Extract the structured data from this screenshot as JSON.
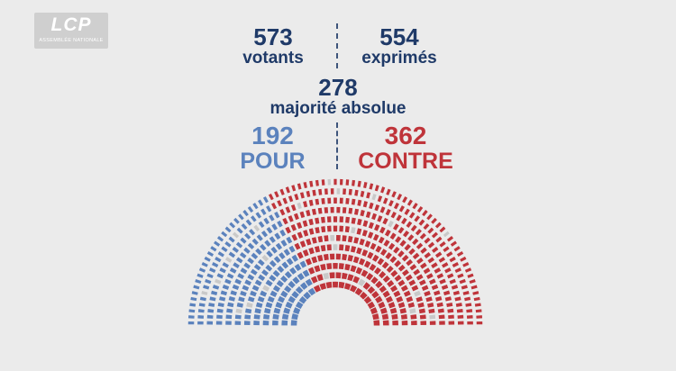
{
  "logo": {
    "text": "LCP",
    "subtext": "ASSEMBLÉE NATIONALE"
  },
  "votants": {
    "value": "573",
    "label": "votants"
  },
  "exprimes": {
    "value": "554",
    "label": "exprimés"
  },
  "majorite": {
    "value": "278",
    "label": "majorité absolue"
  },
  "pour": {
    "value": "192",
    "label": "POUR"
  },
  "contre": {
    "value": "362",
    "label": "CONTRE"
  },
  "vote_counts": {
    "seats": 577,
    "pour": 192,
    "contre": 362,
    "other": 23
  },
  "colors": {
    "background": "#ebebeb",
    "navy": "#1f3a68",
    "pour": "#5b82bd",
    "contre": "#bf343a",
    "other": "#c9c9c9"
  }
}
